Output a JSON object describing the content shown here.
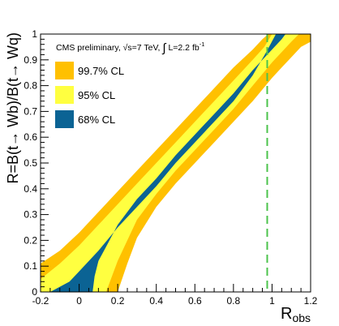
{
  "chart_data": {
    "type": "area",
    "title": "",
    "xlabel": "R",
    "xlabel_sub": "obs",
    "ylabel": "R=B(t→ Wb)/B(t→ Wq)",
    "xlim": [
      -0.2,
      1.2
    ],
    "ylim": [
      0,
      1
    ],
    "x_ticks": [
      -0.2,
      0,
      0.2,
      0.4,
      0.6,
      0.8,
      1,
      1.2
    ],
    "x_tick_labels": [
      "-0.2",
      "0",
      "0.2",
      "0.4",
      "0.6",
      "0.8",
      "1",
      "1.2"
    ],
    "y_ticks": [
      0,
      0.1,
      0.2,
      0.3,
      0.4,
      0.5,
      0.6,
      0.7,
      0.8,
      0.9,
      1
    ],
    "y_tick_labels": [
      "0",
      "0.1",
      "0.2",
      "0.3",
      "0.4",
      "0.5",
      "0.6",
      "0.7",
      "0.8",
      "0.9",
      "1"
    ],
    "annotation": {
      "prefix": "CMS preliminary, ",
      "sqrt_s": "s=7 TeV, ",
      "lumi": "L=2.2 fb",
      "lumi_exp": "-1"
    },
    "observed_line": {
      "x": 0.975,
      "color": "#4cc34c",
      "style": "dashed"
    },
    "legend_position": "top-left",
    "bands": [
      {
        "name": "99.7% CL",
        "color": "#ffc000",
        "points": [
          [
            -0.2,
            0.0
          ],
          [
            -0.2,
            0.11
          ],
          [
            -0.1,
            0.16
          ],
          [
            0.0,
            0.23
          ],
          [
            0.1,
            0.31
          ],
          [
            0.2,
            0.39
          ],
          [
            0.3,
            0.47
          ],
          [
            0.4,
            0.55
          ],
          [
            0.5,
            0.63
          ],
          [
            0.6,
            0.71
          ],
          [
            0.7,
            0.79
          ],
          [
            0.8,
            0.87
          ],
          [
            0.9,
            0.94
          ],
          [
            0.95,
            0.98
          ],
          [
            0.98,
            1.0
          ],
          [
            1.2,
            1.0
          ],
          [
            1.2,
            0.97
          ],
          [
            1.15,
            0.95
          ],
          [
            1.1,
            0.91
          ],
          [
            1.05,
            0.87
          ],
          [
            1.0,
            0.83
          ],
          [
            0.9,
            0.74
          ],
          [
            0.8,
            0.66
          ],
          [
            0.7,
            0.58
          ],
          [
            0.6,
            0.5
          ],
          [
            0.5,
            0.42
          ],
          [
            0.4,
            0.33
          ],
          [
            0.3,
            0.21
          ],
          [
            0.25,
            0.11
          ],
          [
            0.2,
            0.0
          ]
        ]
      },
      {
        "name": "95% CL",
        "color": "#ffff40",
        "points": [
          [
            -0.2,
            0.0
          ],
          [
            -0.2,
            0.05
          ],
          [
            -0.1,
            0.11
          ],
          [
            0.0,
            0.18
          ],
          [
            0.1,
            0.26
          ],
          [
            0.2,
            0.34
          ],
          [
            0.3,
            0.42
          ],
          [
            0.4,
            0.5
          ],
          [
            0.5,
            0.58
          ],
          [
            0.6,
            0.66
          ],
          [
            0.7,
            0.74
          ],
          [
            0.8,
            0.82
          ],
          [
            0.9,
            0.9
          ],
          [
            0.96,
            0.95
          ],
          [
            1.0,
            1.0
          ],
          [
            1.14,
            1.0
          ],
          [
            1.1,
            0.97
          ],
          [
            1.05,
            0.93
          ],
          [
            1.0,
            0.89
          ],
          [
            0.9,
            0.8
          ],
          [
            0.8,
            0.71
          ],
          [
            0.7,
            0.63
          ],
          [
            0.6,
            0.55
          ],
          [
            0.5,
            0.47
          ],
          [
            0.4,
            0.38
          ],
          [
            0.3,
            0.28
          ],
          [
            0.25,
            0.2
          ],
          [
            0.2,
            0.12
          ],
          [
            0.16,
            0.04
          ],
          [
            0.14,
            0.0
          ]
        ]
      },
      {
        "name": "68% CL",
        "color": "#0b6394",
        "points": [
          [
            -0.15,
            0.0
          ],
          [
            -0.05,
            0.04
          ],
          [
            0.0,
            0.08
          ],
          [
            0.1,
            0.16
          ],
          [
            0.2,
            0.25
          ],
          [
            0.3,
            0.33
          ],
          [
            0.4,
            0.41
          ],
          [
            0.5,
            0.5
          ],
          [
            0.6,
            0.58
          ],
          [
            0.7,
            0.66
          ],
          [
            0.8,
            0.74
          ],
          [
            0.9,
            0.84
          ],
          [
            0.97,
            0.93
          ],
          [
            1.02,
            1.0
          ],
          [
            1.07,
            1.0
          ],
          [
            1.05,
            0.98
          ],
          [
            1.0,
            0.94
          ],
          [
            0.9,
            0.86
          ],
          [
            0.8,
            0.77
          ],
          [
            0.7,
            0.69
          ],
          [
            0.6,
            0.61
          ],
          [
            0.5,
            0.53
          ],
          [
            0.4,
            0.44
          ],
          [
            0.3,
            0.36
          ],
          [
            0.2,
            0.26
          ],
          [
            0.15,
            0.19
          ],
          [
            0.1,
            0.12
          ],
          [
            0.08,
            0.06
          ],
          [
            0.07,
            0.0
          ]
        ]
      }
    ]
  }
}
